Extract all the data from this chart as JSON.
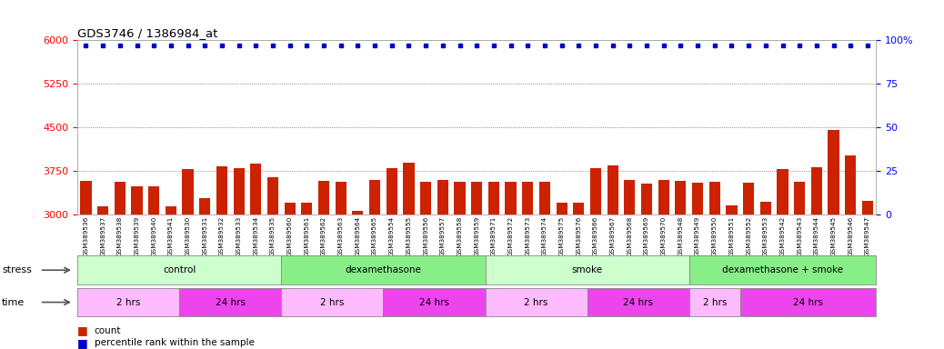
{
  "title": "GDS3746 / 1386984_at",
  "samples": [
    "GSM389536",
    "GSM389537",
    "GSM389538",
    "GSM389539",
    "GSM389540",
    "GSM389541",
    "GSM389530",
    "GSM389531",
    "GSM389532",
    "GSM389533",
    "GSM389534",
    "GSM389535",
    "GSM389560",
    "GSM389561",
    "GSM389562",
    "GSM389563",
    "GSM389564",
    "GSM389565",
    "GSM389554",
    "GSM389555",
    "GSM389556",
    "GSM389557",
    "GSM389558",
    "GSM389559",
    "GSM389571",
    "GSM389572",
    "GSM389573",
    "GSM389574",
    "GSM389575",
    "GSM389576",
    "GSM389566",
    "GSM389567",
    "GSM389568",
    "GSM389569",
    "GSM389570",
    "GSM389548",
    "GSM389549",
    "GSM389550",
    "GSM389551",
    "GSM389552",
    "GSM389553",
    "GSM389542",
    "GSM389543",
    "GSM389544",
    "GSM389545",
    "GSM389546",
    "GSM389547"
  ],
  "counts": [
    3580,
    3140,
    3560,
    3490,
    3490,
    3150,
    3780,
    3280,
    3830,
    3800,
    3870,
    3650,
    3200,
    3200,
    3580,
    3570,
    3060,
    3600,
    3800,
    3900,
    3560,
    3600,
    3560,
    3560,
    3560,
    3570,
    3560,
    3560,
    3200,
    3200,
    3800,
    3850,
    3600,
    3540,
    3600,
    3580,
    3550,
    3560,
    3160,
    3550,
    3220,
    3780,
    3560,
    3820,
    4460,
    4020,
    3230
  ],
  "percentile_ranks": [
    97,
    97,
    97,
    97,
    97,
    97,
    97,
    97,
    97,
    97,
    97,
    97,
    97,
    97,
    97,
    97,
    97,
    97,
    97,
    97,
    97,
    97,
    97,
    97,
    97,
    97,
    97,
    97,
    97,
    97,
    97,
    97,
    97,
    97,
    97,
    97,
    97,
    97,
    97,
    97,
    97,
    97,
    97,
    97,
    97,
    97,
    97
  ],
  "ylim_left": [
    3000,
    6000
  ],
  "ylim_right": [
    0,
    100
  ],
  "yticks_left": [
    3000,
    3750,
    4500,
    5250,
    6000
  ],
  "yticks_right": [
    0,
    25,
    50,
    75,
    100
  ],
  "bar_color": "#cc2200",
  "dot_color": "#0000cc",
  "stress_groups": [
    {
      "label": "control",
      "start": 0,
      "end": 12,
      "color": "#ccffcc"
    },
    {
      "label": "dexamethasone",
      "start": 12,
      "end": 24,
      "color": "#88ee88"
    },
    {
      "label": "smoke",
      "start": 24,
      "end": 36,
      "color": "#ccffcc"
    },
    {
      "label": "dexamethasone + smoke",
      "start": 36,
      "end": 47,
      "color": "#88ee88"
    }
  ],
  "time_groups": [
    {
      "label": "2 hrs",
      "start": 0,
      "end": 6,
      "color": "#ffbbff"
    },
    {
      "label": "24 hrs",
      "start": 6,
      "end": 12,
      "color": "#ee44ee"
    },
    {
      "label": "2 hrs",
      "start": 12,
      "end": 18,
      "color": "#ffbbff"
    },
    {
      "label": "24 hrs",
      "start": 18,
      "end": 24,
      "color": "#ee44ee"
    },
    {
      "label": "2 hrs",
      "start": 24,
      "end": 30,
      "color": "#ffbbff"
    },
    {
      "label": "24 hrs",
      "start": 30,
      "end": 36,
      "color": "#ee44ee"
    },
    {
      "label": "2 hrs",
      "start": 36,
      "end": 39,
      "color": "#ffbbff"
    },
    {
      "label": "24 hrs",
      "start": 39,
      "end": 47,
      "color": "#ee44ee"
    }
  ],
  "bg_color": "#ffffff",
  "grid_color": "#444444",
  "legend_items": [
    {
      "color": "#cc2200",
      "label": "count"
    },
    {
      "color": "#0000cc",
      "label": "percentile rank within the sample"
    }
  ]
}
